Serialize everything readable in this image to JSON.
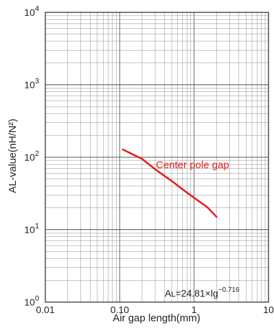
{
  "chart_data": {
    "type": "line",
    "xlabel": "Air gap length(mm)",
    "ylabel": "AL-value(nH/N²)",
    "xscale": "log",
    "yscale": "log",
    "xlim": [
      0.01,
      10
    ],
    "ylim": [
      1,
      10000
    ],
    "grid": true,
    "x_tick_labels": [
      "0.01",
      "0.10",
      "1",
      "10"
    ],
    "y_tick_labels": [
      {
        "base": "10",
        "exp": "0"
      },
      {
        "base": "10",
        "exp": "1"
      },
      {
        "base": "10",
        "exp": "2"
      },
      {
        "base": "10",
        "exp": "3"
      },
      {
        "base": "10",
        "exp": "4"
      }
    ],
    "series": [
      {
        "name": "Center pole gap",
        "color": "#e02020",
        "x": [
          0.11,
          0.2,
          0.3,
          0.5,
          0.7,
          1.0,
          1.5,
          2.0
        ],
        "y": [
          128,
          95,
          68,
          47,
          36,
          27.5,
          20.5,
          15
        ]
      }
    ],
    "annotation": {
      "prefix": "A",
      "sub": "L",
      "mid": "=24.81×lg",
      "exp": "−0.716"
    }
  }
}
